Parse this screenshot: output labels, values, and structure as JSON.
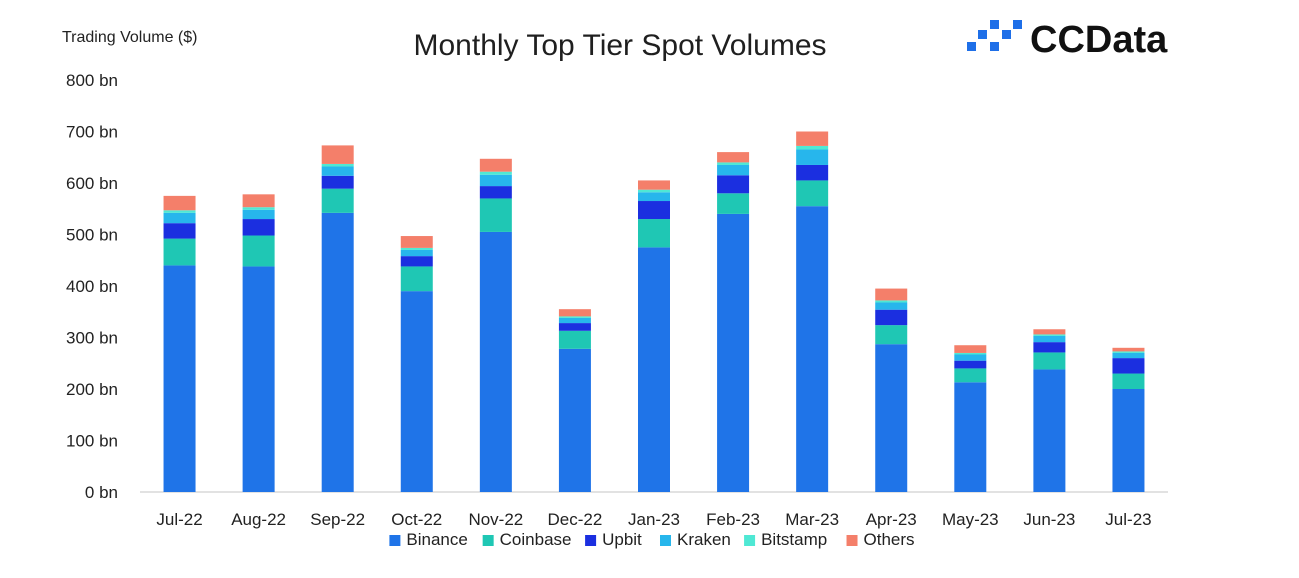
{
  "brand": {
    "name": "CCData",
    "logo_icon": "ccdata-logo-icon",
    "logo_color": "#1e6fe8"
  },
  "chart_data": {
    "type": "bar",
    "stacked": true,
    "title": "Monthly Top Tier Spot Volumes",
    "ylabel": "Trading Volume ($)",
    "xlabel": "",
    "ylim": [
      0,
      800
    ],
    "yticks": [
      0,
      100,
      200,
      300,
      400,
      500,
      600,
      700,
      800
    ],
    "ytick_labels": [
      "0 bn",
      "100 bn",
      "200 bn",
      "300 bn",
      "400 bn",
      "500 bn",
      "600 bn",
      "700 bn",
      "800 bn"
    ],
    "grid": false,
    "legend_position": "bottom",
    "categories": [
      "Jul-22",
      "Aug-22",
      "Sep-22",
      "Oct-22",
      "Nov-22",
      "Dec-22",
      "Jan-23",
      "Feb-23",
      "Mar-23",
      "Apr-23",
      "May-23",
      "Jun-23",
      "Jul-23"
    ],
    "series": [
      {
        "name": "Binance",
        "color": "#1f74e8",
        "values": [
          440,
          438,
          542,
          390,
          505,
          278,
          475,
          540,
          555,
          287,
          213,
          238,
          200
        ]
      },
      {
        "name": "Coinbase",
        "color": "#1fc7b4",
        "values": [
          52,
          60,
          47,
          48,
          65,
          35,
          55,
          40,
          50,
          37,
          27,
          33,
          30
        ]
      },
      {
        "name": "Upbit",
        "color": "#1b2fe0",
        "values": [
          30,
          32,
          25,
          20,
          24,
          15,
          35,
          35,
          30,
          30,
          15,
          20,
          30
        ]
      },
      {
        "name": "Kraken",
        "color": "#27b6ec",
        "values": [
          20,
          18,
          18,
          12,
          22,
          10,
          17,
          20,
          30,
          14,
          12,
          12,
          10
        ]
      },
      {
        "name": "Bitstamp",
        "color": "#4fe8d4",
        "values": [
          5,
          5,
          5,
          4,
          6,
          3,
          5,
          5,
          7,
          4,
          3,
          3,
          3
        ]
      },
      {
        "name": "Others",
        "color": "#f47f6a",
        "values": [
          28,
          25,
          36,
          23,
          25,
          14,
          18,
          20,
          28,
          23,
          15,
          10,
          7
        ]
      }
    ]
  }
}
